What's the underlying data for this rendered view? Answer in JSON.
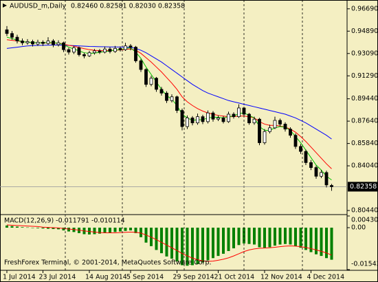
{
  "chart_data": [
    {
      "type": "candlestick",
      "title": "AUDUSD_m,Daily",
      "ohlc_label": "0.82460 0.82581 0.82030 0.82358",
      "categories": [
        "1 Jul 2014",
        null,
        null,
        null,
        null,
        null,
        null,
        "23 Jul 2014",
        null,
        null,
        null,
        null,
        null,
        null,
        null,
        null,
        "14 Aug 2014",
        null,
        null,
        null,
        null,
        null,
        null,
        null,
        "5 Sep 2014",
        null,
        null,
        null,
        null,
        null,
        null,
        null,
        null,
        "29 Sep 2014",
        null,
        null,
        null,
        null,
        null,
        null,
        null,
        "21 Oct 2014",
        null,
        null,
        null,
        null,
        null,
        null,
        null,
        null,
        "12 Nov 2014",
        null,
        null,
        null,
        null,
        null,
        null,
        null,
        null,
        "4 Dec 2014",
        null,
        null,
        null,
        null
      ],
      "open": [
        0.95,
        0.947,
        0.944,
        0.941,
        0.9395,
        0.9405,
        0.9385,
        0.94,
        0.939,
        0.941,
        0.938,
        0.9395,
        0.934,
        0.932,
        0.9355,
        0.93,
        0.929,
        0.9315,
        0.933,
        0.932,
        0.9345,
        0.9325,
        0.935,
        0.934,
        0.937,
        0.936,
        0.925,
        0.918,
        0.906,
        0.911,
        0.902,
        0.899,
        0.893,
        0.896,
        0.885,
        0.872,
        0.879,
        0.875,
        0.88,
        0.876,
        0.883,
        0.878,
        0.879,
        0.876,
        0.882,
        0.88,
        0.887,
        0.882,
        0.875,
        0.878,
        0.859,
        0.868,
        0.871,
        0.877,
        0.874,
        0.87,
        0.865,
        0.856,
        0.852,
        0.843,
        0.839,
        0.832,
        0.835,
        0.8246
      ],
      "high": [
        0.953,
        0.949,
        0.946,
        0.943,
        0.9425,
        0.942,
        0.942,
        0.9415,
        0.944,
        0.9425,
        0.9415,
        0.9405,
        0.9355,
        0.937,
        0.9365,
        0.9315,
        0.933,
        0.9345,
        0.9345,
        0.9365,
        0.936,
        0.937,
        0.9365,
        0.9395,
        0.9385,
        0.937,
        0.9265,
        0.919,
        0.913,
        0.912,
        0.904,
        0.9005,
        0.898,
        0.897,
        0.8865,
        0.881,
        0.8805,
        0.8825,
        0.8815,
        0.885,
        0.8845,
        0.881,
        0.8805,
        0.884,
        0.8835,
        0.89,
        0.888,
        0.883,
        0.88,
        0.879,
        0.87,
        0.8735,
        0.88,
        0.8785,
        0.8755,
        0.8715,
        0.8665,
        0.858,
        0.8535,
        0.845,
        0.8405,
        0.837,
        0.8365,
        0.82581
      ],
      "low": [
        0.945,
        0.942,
        0.939,
        0.9375,
        0.938,
        0.9365,
        0.937,
        0.937,
        0.938,
        0.936,
        0.9365,
        0.932,
        0.93,
        0.9305,
        0.9285,
        0.927,
        0.928,
        0.93,
        0.9305,
        0.931,
        0.931,
        0.9315,
        0.9325,
        0.933,
        0.9335,
        0.9235,
        0.916,
        0.904,
        0.9045,
        0.9,
        0.897,
        0.891,
        0.8915,
        0.883,
        0.869,
        0.87,
        0.873,
        0.8735,
        0.874,
        0.8745,
        0.876,
        0.8765,
        0.8745,
        0.875,
        0.8785,
        0.879,
        0.88,
        0.8735,
        0.8735,
        0.857,
        0.8575,
        0.8665,
        0.87,
        0.872,
        0.868,
        0.863,
        0.854,
        0.85,
        0.841,
        0.837,
        0.83,
        0.8305,
        0.823,
        0.8203
      ],
      "close": [
        0.947,
        0.944,
        0.941,
        0.9395,
        0.9405,
        0.9385,
        0.94,
        0.939,
        0.941,
        0.938,
        0.9395,
        0.934,
        0.932,
        0.9355,
        0.93,
        0.929,
        0.9315,
        0.933,
        0.932,
        0.9345,
        0.9325,
        0.935,
        0.934,
        0.937,
        0.936,
        0.925,
        0.918,
        0.906,
        0.911,
        0.902,
        0.899,
        0.893,
        0.896,
        0.885,
        0.872,
        0.879,
        0.875,
        0.88,
        0.876,
        0.883,
        0.878,
        0.879,
        0.876,
        0.882,
        0.88,
        0.887,
        0.882,
        0.875,
        0.878,
        0.859,
        0.868,
        0.871,
        0.877,
        0.874,
        0.87,
        0.865,
        0.856,
        0.852,
        0.843,
        0.839,
        0.832,
        0.835,
        0.825,
        0.82358
      ],
      "lines": [
        {
          "color": "#0000ff",
          "values": [
            0.935,
            0.9355,
            0.936,
            0.9365,
            0.937,
            0.9372,
            0.9374,
            0.9375,
            0.9376,
            0.9377,
            0.9378,
            0.9376,
            0.9374,
            0.9372,
            0.937,
            0.9368,
            0.9366,
            0.9365,
            0.9364,
            0.9363,
            0.9362,
            0.9362,
            0.9361,
            0.936,
            0.9358,
            0.935,
            0.9335,
            0.9315,
            0.929,
            0.9265,
            0.924,
            0.921,
            0.918,
            0.915,
            0.912,
            0.909,
            0.906,
            0.9035,
            0.901,
            0.899,
            0.8975,
            0.896,
            0.8945,
            0.893,
            0.892,
            0.891,
            0.89,
            0.889,
            0.888,
            0.887,
            0.886,
            0.885,
            0.884,
            0.883,
            0.882,
            0.8805,
            0.879,
            0.877,
            0.875,
            0.8725,
            0.87,
            0.8675,
            0.865,
            0.862
          ]
        },
        {
          "color": "#ff0000",
          "values": [
            0.942,
            0.9415,
            0.941,
            0.9405,
            0.94,
            0.9398,
            0.9396,
            0.9395,
            0.9394,
            0.9393,
            0.9392,
            0.9385,
            0.9375,
            0.9368,
            0.9358,
            0.9348,
            0.934,
            0.9335,
            0.9332,
            0.9332,
            0.9333,
            0.9335,
            0.9338,
            0.9342,
            0.9346,
            0.9335,
            0.931,
            0.9275,
            0.924,
            0.92,
            0.916,
            0.9115,
            0.907,
            0.902,
            0.896,
            0.892,
            0.889,
            0.8865,
            0.8845,
            0.883,
            0.882,
            0.881,
            0.8805,
            0.88,
            0.88,
            0.8805,
            0.8805,
            0.88,
            0.879,
            0.876,
            0.874,
            0.873,
            0.873,
            0.8725,
            0.8715,
            0.87,
            0.8675,
            0.864,
            0.86,
            0.8555,
            0.851,
            0.8465,
            0.842,
            0.838
          ]
        },
        {
          "color": "#00c000",
          "values": [
            0.944,
            0.943,
            0.9415,
            0.9405,
            0.94,
            0.9398,
            0.9395,
            0.9396,
            0.9397,
            0.9395,
            0.9393,
            0.938,
            0.936,
            0.9345,
            0.933,
            0.9315,
            0.931,
            0.9312,
            0.9318,
            0.9325,
            0.933,
            0.9337,
            0.934,
            0.935,
            0.9355,
            0.932,
            0.927,
            0.92,
            0.914,
            0.908,
            0.902,
            0.897,
            0.894,
            0.889,
            0.882,
            0.879,
            0.877,
            0.8775,
            0.8775,
            0.879,
            0.8795,
            0.8795,
            0.879,
            0.88,
            0.8805,
            0.8825,
            0.883,
            0.881,
            0.879,
            0.872,
            0.869,
            0.869,
            0.871,
            0.872,
            0.8715,
            0.869,
            0.864,
            0.859,
            0.853,
            0.847,
            0.841,
            0.837,
            0.832,
            0.829
          ]
        }
      ],
      "current_price": {
        "value": 0.82358,
        "label": "0.82358"
      },
      "ylim": [
        0.8011,
        0.974
      ],
      "yticks": [
        {
          "value": 0.9669,
          "label": "0.96690"
        },
        {
          "value": 0.9489,
          "label": "0.94890"
        },
        {
          "value": 0.9309,
          "label": "0.93090"
        },
        {
          "value": 0.9129,
          "label": "0.91290"
        },
        {
          "value": 0.8944,
          "label": "0.89440"
        },
        {
          "value": 0.8764,
          "label": "0.87640"
        },
        {
          "value": 0.8584,
          "label": "0.85840"
        },
        {
          "value": 0.8404,
          "label": "0.84040"
        },
        {
          "value": 0.8044,
          "label": "0.80440"
        }
      ]
    },
    {
      "type": "macd",
      "title": "MACD(12,26,9) -0.011791 -0.010114",
      "footer": "FreshForex Terminal, © 2001-2014, MetaQuotes Software Corp.",
      "series": [
        {
          "style": "histogram",
          "color": "#008000",
          "values": [
            0.0008,
            0.0006,
            0.0004,
            0.0002,
            0.0001,
            0,
            -0.0002,
            -0.0003,
            -0.0004,
            -0.0005,
            -0.0006,
            -0.001,
            -0.0014,
            -0.0016,
            -0.002,
            -0.0024,
            -0.0025,
            -0.0024,
            -0.0022,
            -0.002,
            -0.0018,
            -0.0016,
            -0.0014,
            -0.0012,
            -0.001,
            -0.002,
            -0.0035,
            -0.0055,
            -0.0068,
            -0.0082,
            -0.0094,
            -0.0106,
            -0.0114,
            -0.0124,
            -0.0138,
            -0.014,
            -0.0138,
            -0.0134,
            -0.0128,
            -0.012,
            -0.0112,
            -0.0104,
            -0.0096,
            -0.0086,
            -0.0076,
            -0.0064,
            -0.0058,
            -0.006,
            -0.0062,
            -0.0072,
            -0.0074,
            -0.0072,
            -0.0066,
            -0.0062,
            -0.006,
            -0.0062,
            -0.0068,
            -0.0074,
            -0.0082,
            -0.009,
            -0.0098,
            -0.0104,
            -0.0112,
            -0.011791
          ]
        },
        {
          "style": "line",
          "color": "#ff0000",
          "values": [
            0.001,
            0.0009,
            0.0008,
            0.0007,
            0.0006,
            0.0005,
            0.0004,
            0.0002,
            0.0001,
            0,
            -0.0001,
            -0.0003,
            -0.0005,
            -0.0007,
            -0.0009,
            -0.0012,
            -0.0014,
            -0.0016,
            -0.0018,
            -0.0019,
            -0.0019,
            -0.0019,
            -0.0018,
            -0.0017,
            -0.0016,
            -0.0017,
            -0.002,
            -0.0027,
            -0.0035,
            -0.0044,
            -0.0054,
            -0.0064,
            -0.0074,
            -0.0084,
            -0.0095,
            -0.0104,
            -0.0112,
            -0.0118,
            -0.0122,
            -0.0124,
            -0.0123,
            -0.012,
            -0.0116,
            -0.0111,
            -0.0104,
            -0.0096,
            -0.0088,
            -0.0082,
            -0.0078,
            -0.0076,
            -0.0075,
            -0.0074,
            -0.0072,
            -0.007,
            -0.0068,
            -0.0067,
            -0.0068,
            -0.007,
            -0.0073,
            -0.0077,
            -0.0082,
            -0.0087,
            -0.0093,
            -0.010114
          ]
        }
      ],
      "ylim": [
        -0.015435,
        0.004303
      ],
      "yticks": [
        0.004303,
        {
          "value": 0,
          "label": "0.00"
        },
        -0.015435
      ]
    }
  ]
}
